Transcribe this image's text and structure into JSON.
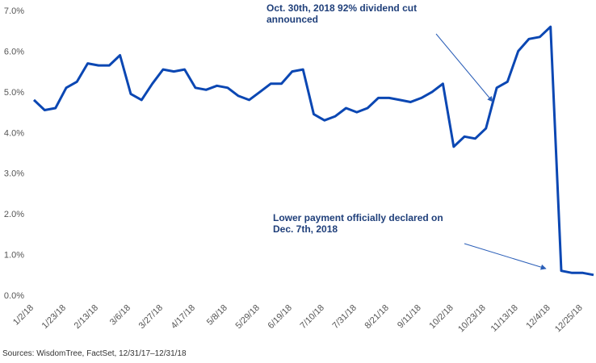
{
  "chart_data": {
    "type": "line",
    "categories": [
      "1/2/18",
      null,
      null,
      "1/23/18",
      null,
      null,
      "2/13/18",
      null,
      null,
      "3/6/18",
      null,
      null,
      "3/27/18",
      null,
      null,
      "4/17/18",
      null,
      null,
      "5/8/18",
      null,
      null,
      "5/29/18",
      null,
      null,
      "6/19/18",
      null,
      null,
      "7/10/18",
      null,
      null,
      "7/31/18",
      null,
      null,
      "8/21/18",
      null,
      null,
      "9/11/18",
      null,
      null,
      "10/2/18",
      null,
      null,
      "10/23/18",
      null,
      null,
      "11/13/18",
      null,
      null,
      "12/4/18",
      null,
      null,
      "12/25/18",
      null
    ],
    "series": [
      {
        "color": "#0b47b3",
        "values": [
          4.8,
          4.55,
          4.6,
          5.1,
          5.25,
          5.7,
          5.65,
          5.65,
          5.9,
          4.95,
          4.8,
          5.2,
          5.55,
          5.5,
          5.55,
          5.1,
          5.05,
          5.15,
          5.1,
          4.9,
          4.8,
          5.0,
          5.2,
          5.2,
          5.5,
          5.55,
          4.45,
          4.3,
          4.4,
          4.6,
          4.5,
          4.6,
          4.85,
          4.85,
          4.8,
          4.75,
          4.85,
          5.0,
          5.2,
          3.65,
          3.9,
          3.85,
          4.1,
          5.1,
          5.25,
          6.0,
          6.3,
          6.35,
          6.6,
          0.6,
          0.55,
          0.55,
          0.5
        ]
      }
    ],
    "ylim": [
      0,
      7
    ],
    "yticks": [
      {
        "value": 0,
        "label": "0.0%"
      },
      {
        "value": 1,
        "label": "1.0%"
      },
      {
        "value": 2,
        "label": "2.0%"
      },
      {
        "value": 3,
        "label": "3.0%"
      },
      {
        "value": 4,
        "label": "4.0%"
      },
      {
        "value": 5,
        "label": "5.0%"
      },
      {
        "value": 6,
        "label": "6.0%"
      },
      {
        "value": 7,
        "label": "7.0%"
      }
    ],
    "annotations": [
      {
        "lines": [
          "Oct. 30th, 2018 92% dividend cut",
          "announced"
        ]
      },
      {
        "lines": [
          "Lower payment officially declared on",
          "Dec. 7th, 2018"
        ]
      }
    ],
    "source": "Sources: WisdomTree, FactSet, 12/31/17–12/31/18"
  }
}
